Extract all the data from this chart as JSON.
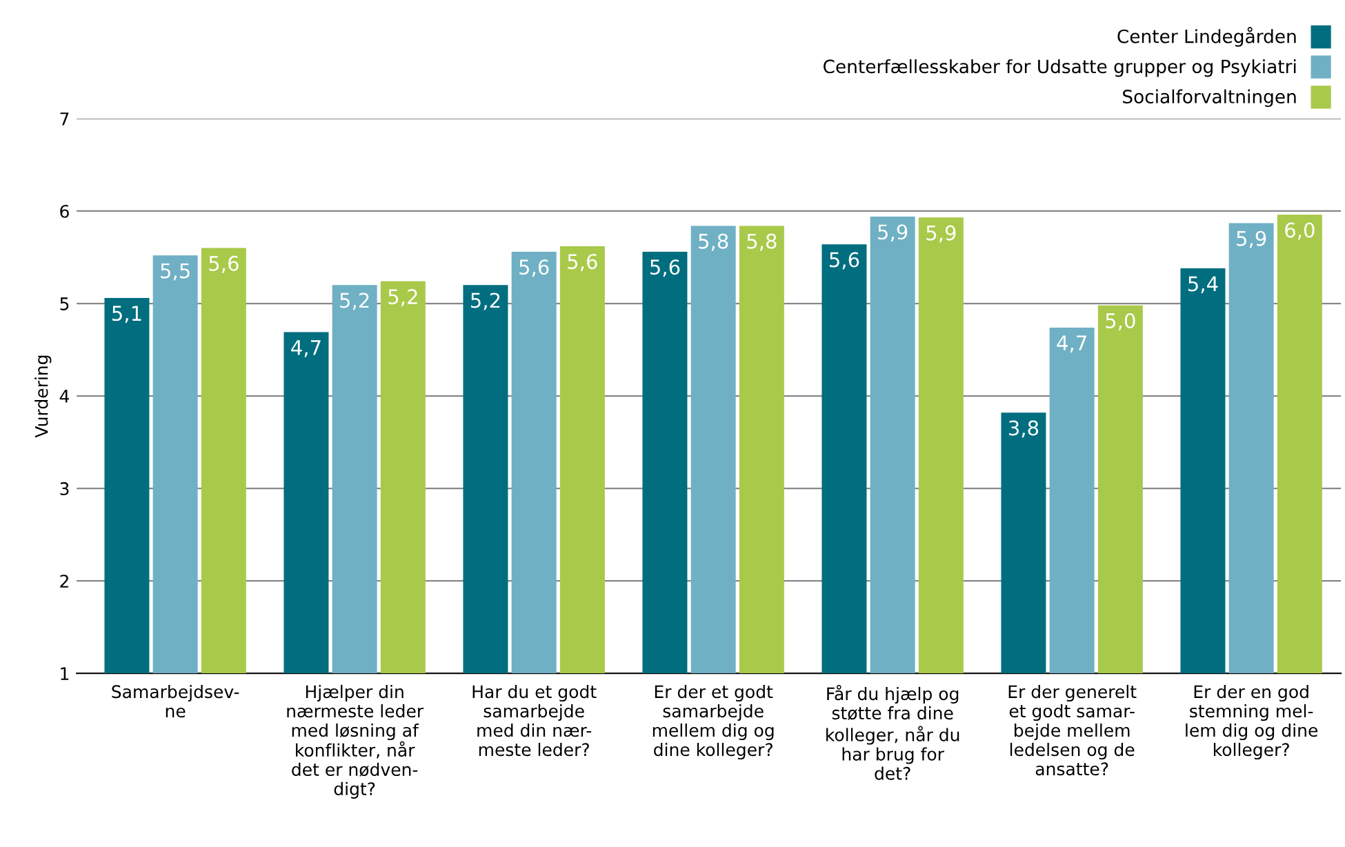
{
  "chart_data": {
    "type": "bar",
    "ylabel": "Vurdering",
    "categories": [
      "Samarbejdsev-\nne",
      "Hjælper din\nnærmeste leder\nmed løsning af\nkonflikter, når\ndet er nødven-\ndigt?",
      "Har du et godt\nsamarbejde\nmed din nær-\nmeste leder?",
      "Er der et godt\nsamarbejde\nmellem dig og\ndine kolleger?",
      "Får du hjælp og\nstøtte fra dine\nkolleger, når du\nhar brug for\ndet?",
      "Er der generelt\net godt samar-\nbejde mellem\nledelsen og de\nansatte?",
      "Er der en god\nstemning mel-\nlem dig og dine\nkolleger?"
    ],
    "series": [
      {
        "name": "Center Lindegården",
        "color": "#006e7f",
        "values": [
          5.06,
          4.69,
          5.2,
          5.56,
          5.64,
          3.82,
          5.38
        ],
        "value_labels": [
          "5,1",
          "4,7",
          "5,2",
          "5,6",
          "5,6",
          "3,8",
          "5,4"
        ]
      },
      {
        "name": "Centerfællesskaber for Udsatte grupper og Psykiatri",
        "color": "#6fb0c4",
        "values": [
          5.52,
          5.2,
          5.56,
          5.84,
          5.94,
          4.74,
          5.87
        ],
        "value_labels": [
          "5,5",
          "5,2",
          "5,6",
          "5,8",
          "5,9",
          "4,7",
          "5,9"
        ]
      },
      {
        "name": "Socialforvaltningen",
        "color": "#a9c94a",
        "values": [
          5.6,
          5.24,
          5.62,
          5.84,
          5.93,
          4.98,
          5.96
        ],
        "value_labels": [
          "5,6",
          "5,2",
          "5,6",
          "5,8",
          "5,9",
          "5,0",
          "6,0"
        ]
      }
    ],
    "ylim": [
      1,
      7
    ],
    "yticks": [
      1,
      2,
      3,
      4,
      5,
      6,
      7
    ],
    "grid": "y",
    "legend": "top right"
  }
}
